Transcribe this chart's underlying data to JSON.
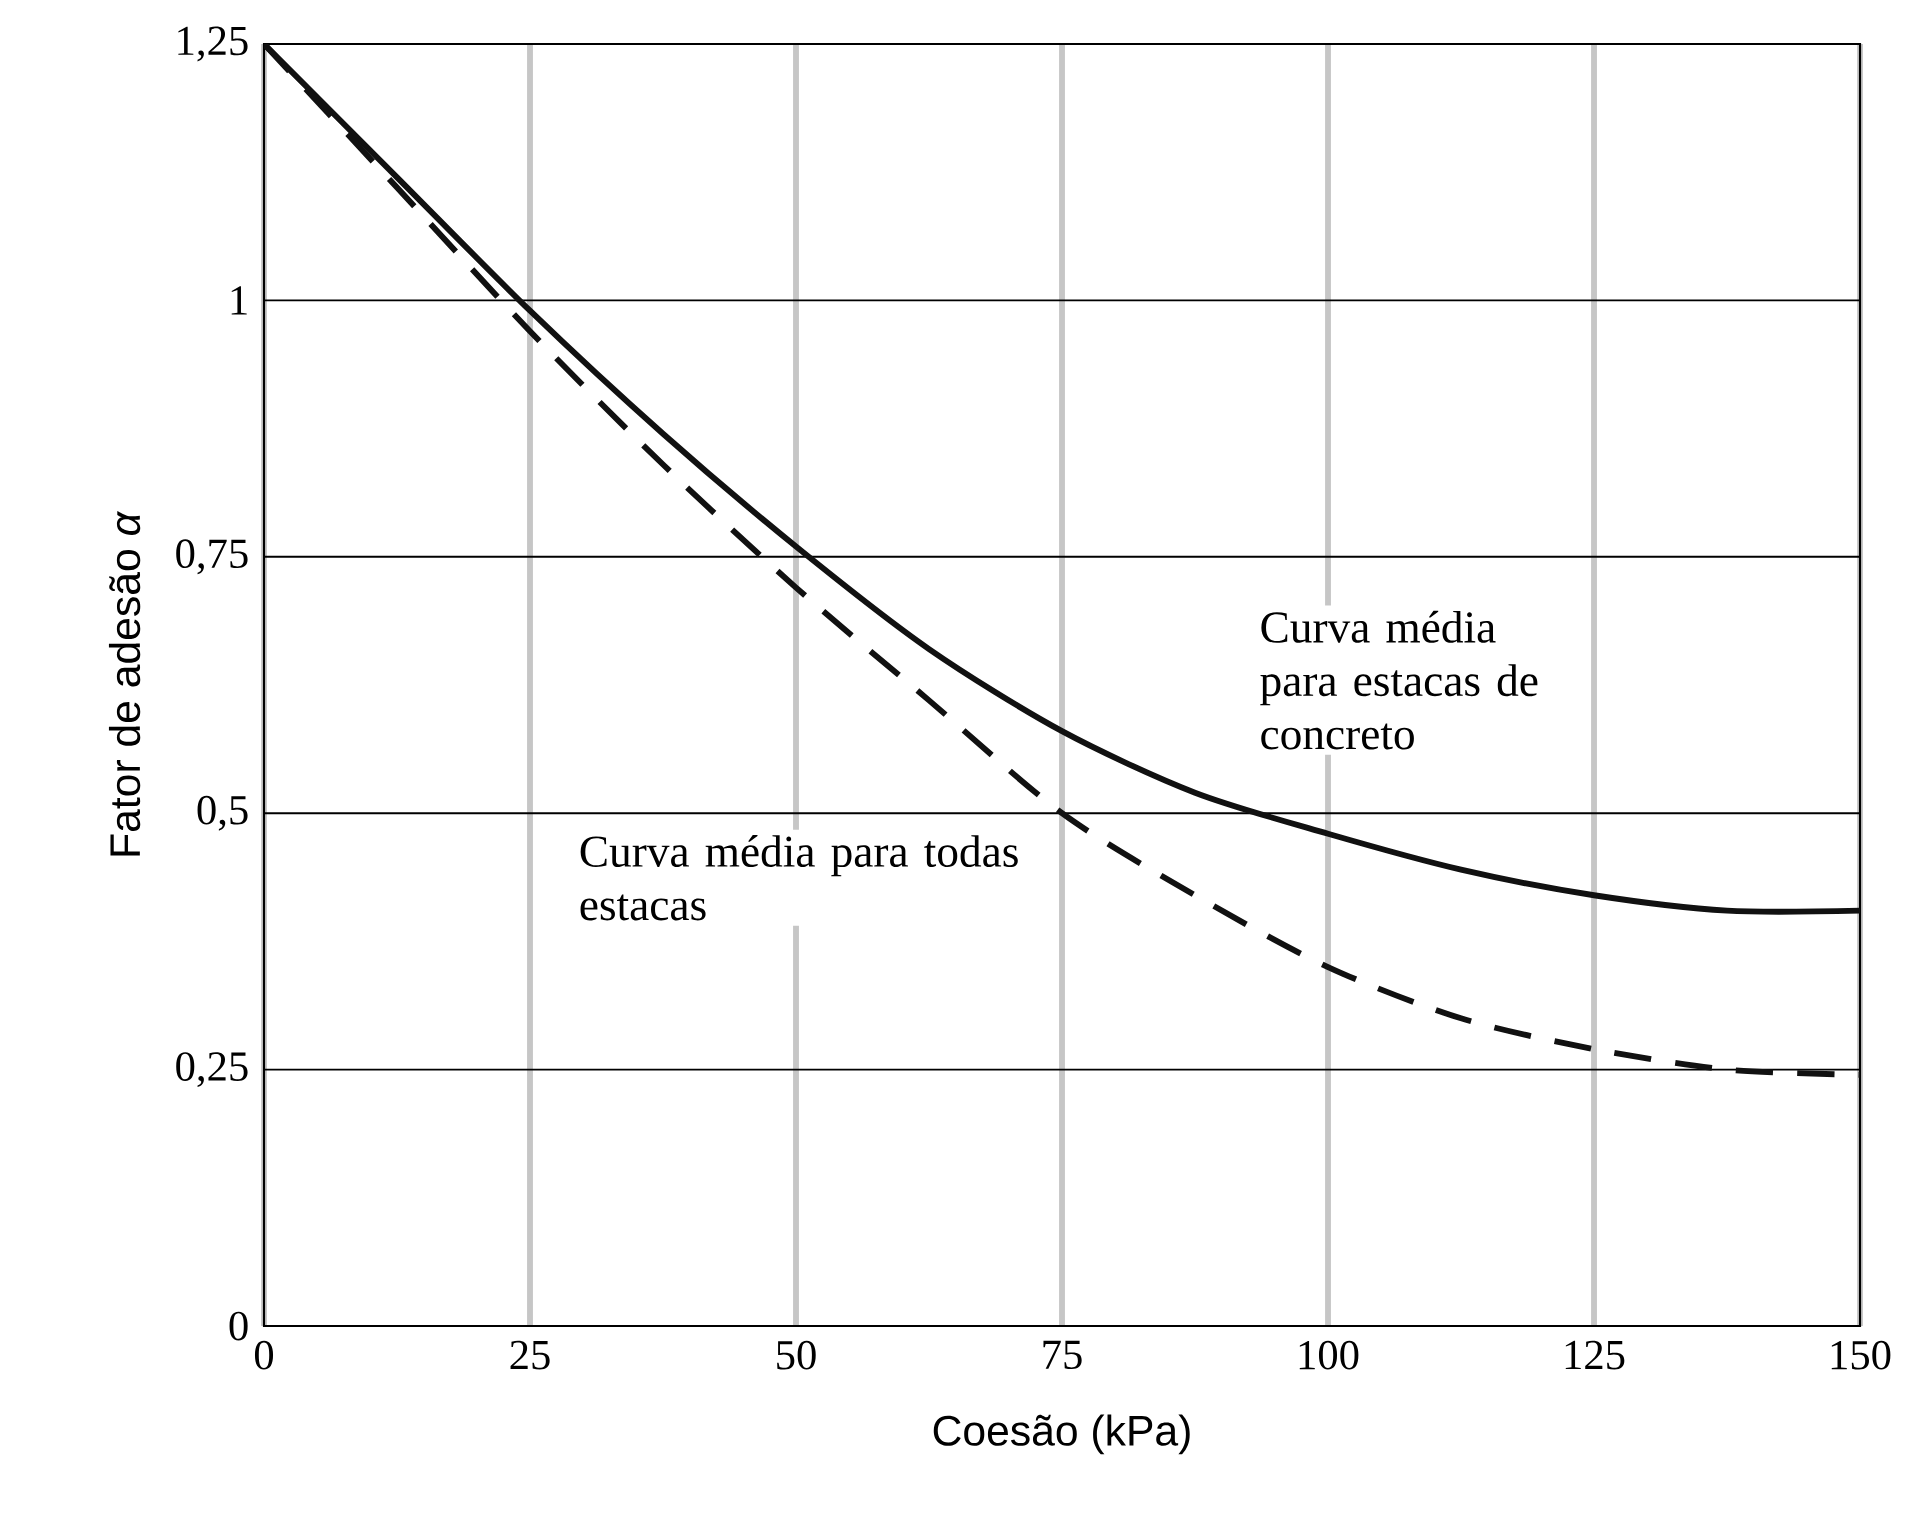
{
  "chart_data": {
    "type": "line",
    "xlabel": "Coesão (kPa)",
    "ylabel": "Fator de adesão *α*",
    "x": [
      0,
      12.5,
      25,
      37.5,
      50,
      62.5,
      75,
      87.5,
      100,
      112.5,
      125,
      137.5,
      150
    ],
    "series": [
      {
        "name": "Curva média para estacas de concreto",
        "color": "#111111",
        "line_style": "solid",
        "values": [
          1.25,
          1.12,
          0.99,
          0.87,
          0.76,
          0.66,
          0.58,
          0.52,
          0.48,
          0.445,
          0.42,
          0.405,
          0.405
        ]
      },
      {
        "name": "Curva média para todas estacas",
        "color": "#111111",
        "line_style": "dashed",
        "values": [
          1.25,
          1.11,
          0.97,
          0.84,
          0.72,
          0.61,
          0.5,
          0.42,
          0.35,
          0.3,
          0.27,
          0.25,
          0.245
        ]
      }
    ],
    "xlim": [
      0,
      150
    ],
    "ylim": [
      0,
      1.25
    ],
    "xticks": [
      0,
      25,
      50,
      75,
      100,
      125,
      150
    ],
    "yticks": [
      0,
      {
        "value": 0.25,
        "label": "0,25"
      },
      {
        "value": 0.5,
        "label": "0,5"
      },
      {
        "value": 0.75,
        "label": "0,75"
      },
      1,
      {
        "value": 1.25,
        "label": "1,25"
      }
    ],
    "grid": true,
    "marker": "none"
  }
}
